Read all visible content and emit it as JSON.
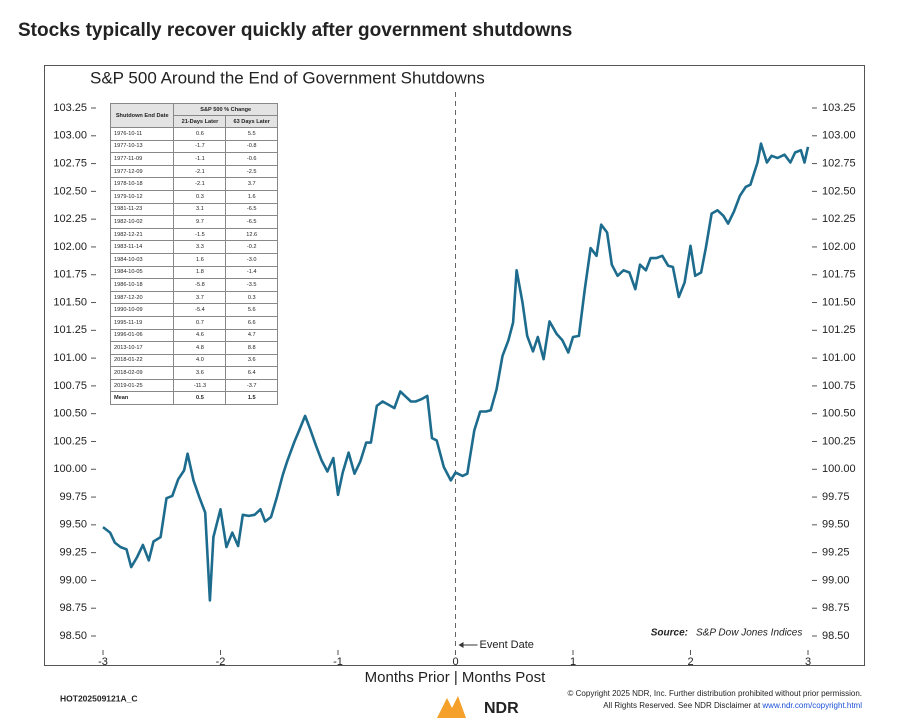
{
  "header": {
    "title": "Stocks typically recover quickly after government shutdowns"
  },
  "chart_data": {
    "type": "line",
    "title": "S&P 500 Around the End of Government Shutdowns",
    "x_label": "Months Prior | Months Post",
    "color": "#1d6c8e",
    "xlim": [
      -3,
      3
    ],
    "xticks": [
      -3,
      -2,
      -1,
      0,
      1,
      2,
      3
    ],
    "ylim": [
      98.5,
      103.25
    ],
    "yticks": [
      {
        "value": 98.5,
        "label": "98.50"
      },
      98.75,
      {
        "value": 99,
        "label": "99.00"
      },
      99.25,
      {
        "value": 99.5,
        "label": "99.50"
      },
      99.75,
      {
        "value": 100,
        "label": "100.00"
      },
      100.25,
      {
        "value": 100.5,
        "label": "100.50"
      },
      100.75,
      {
        "value": 101,
        "label": "101.00"
      },
      101.25,
      {
        "value": 101.5,
        "label": "101.50"
      },
      101.75,
      {
        "value": 102,
        "label": "102.00"
      },
      102.25,
      {
        "value": 102.5,
        "label": "102.50"
      },
      102.75,
      {
        "value": 103,
        "label": "103.00"
      },
      103.25
    ],
    "event_line": {
      "x": 0,
      "label": "Event Date"
    },
    "source": {
      "label": "Source:",
      "text": "S&P Dow Jones Indices"
    },
    "x": [
      -3.0,
      -2.94,
      -2.9,
      -2.85,
      -2.8,
      -2.76,
      -2.71,
      -2.66,
      -2.61,
      -2.57,
      -2.51,
      -2.46,
      -2.41,
      -2.36,
      -2.31,
      -2.28,
      -2.23,
      -2.18,
      -2.13,
      -2.09,
      -2.06,
      -2.0,
      -1.95,
      -1.9,
      -1.85,
      -1.81,
      -1.76,
      -1.71,
      -1.66,
      -1.62,
      -1.57,
      -1.52,
      -1.47,
      -1.43,
      -1.37,
      -1.33,
      -1.28,
      -1.24,
      -1.19,
      -1.14,
      -1.09,
      -1.04,
      -1.0,
      -0.96,
      -0.91,
      -0.86,
      -0.81,
      -0.76,
      -0.72,
      -0.67,
      -0.62,
      -0.57,
      -0.52,
      -0.47,
      -0.43,
      -0.38,
      -0.34,
      -0.29,
      -0.24,
      -0.2,
      -0.16,
      -0.1,
      -0.04,
      0.0,
      0.06,
      0.1,
      0.16,
      0.21,
      0.26,
      0.3,
      0.35,
      0.4,
      0.45,
      0.49,
      0.52,
      0.57,
      0.61,
      0.66,
      0.7,
      0.75,
      0.8,
      0.86,
      0.91,
      0.96,
      1.0,
      1.05,
      1.1,
      1.15,
      1.2,
      1.24,
      1.29,
      1.33,
      1.38,
      1.43,
      1.48,
      1.53,
      1.57,
      1.62,
      1.66,
      1.71,
      1.76,
      1.81,
      1.85,
      1.9,
      1.95,
      2.0,
      2.04,
      2.09,
      2.13,
      2.18,
      2.23,
      2.28,
      2.32,
      2.37,
      2.42,
      2.47,
      2.51,
      2.57,
      2.6,
      2.65,
      2.69,
      2.74,
      2.8,
      2.85,
      2.89,
      2.94,
      2.97,
      3.0
    ],
    "values": [
      99.48,
      99.43,
      99.34,
      99.3,
      99.28,
      99.12,
      99.21,
      99.32,
      99.18,
      99.35,
      99.39,
      99.74,
      99.76,
      99.91,
      99.99,
      100.14,
      99.9,
      99.75,
      99.61,
      98.82,
      99.39,
      99.64,
      99.3,
      99.43,
      99.31,
      99.59,
      99.58,
      99.59,
      99.64,
      99.53,
      99.57,
      99.75,
      99.95,
      100.08,
      100.25,
      100.35,
      100.48,
      100.37,
      100.22,
      100.08,
      99.98,
      100.1,
      99.77,
      99.97,
      100.15,
      99.96,
      100.07,
      100.24,
      100.24,
      100.57,
      100.61,
      100.58,
      100.55,
      100.7,
      100.66,
      100.61,
      100.61,
      100.63,
      100.66,
      100.28,
      100.26,
      100.02,
      99.9,
      99.97,
      99.94,
      99.96,
      100.35,
      100.52,
      100.52,
      100.53,
      100.72,
      101.02,
      101.16,
      101.32,
      101.79,
      101.5,
      101.2,
      101.06,
      101.19,
      100.99,
      101.33,
      101.22,
      101.16,
      101.05,
      101.19,
      101.2,
      101.62,
      101.99,
      101.92,
      102.2,
      102.13,
      101.84,
      101.74,
      101.79,
      101.77,
      101.62,
      101.84,
      101.79,
      101.9,
      101.9,
      101.92,
      101.83,
      101.82,
      101.55,
      101.68,
      102.01,
      101.74,
      101.77,
      101.99,
      102.3,
      102.33,
      102.28,
      102.21,
      102.32,
      102.46,
      102.54,
      102.56,
      102.76,
      102.93,
      102.76,
      102.82,
      102.8,
      102.83,
      102.76,
      102.85,
      102.87,
      102.76,
      102.9
    ]
  },
  "table": {
    "header": {
      "date": "Shutdown End Date",
      "group": "S&P 500 % Change",
      "col1": "21-Days Later",
      "col2": "63 Days Later"
    },
    "rows": [
      [
        "1976-10-11",
        "0.6",
        "5.5"
      ],
      [
        "1977-10-13",
        "-1.7",
        "-0.8"
      ],
      [
        "1977-11-09",
        "-1.1",
        "-0.6"
      ],
      [
        "1977-12-09",
        "-2.1",
        "-2.5"
      ],
      [
        "1978-10-18",
        "-2.1",
        "3.7"
      ],
      [
        "1979-10-12",
        "0.3",
        "1.6"
      ],
      [
        "1981-11-23",
        "3.1",
        "-6.5"
      ],
      [
        "1982-10-02",
        "9.7",
        "-6.5"
      ],
      [
        "1982-12-21",
        "-1.5",
        "12.6"
      ],
      [
        "1983-11-14",
        "3.3",
        "-0.2"
      ],
      [
        "1984-10-03",
        "1.6",
        "-3.0"
      ],
      [
        "1984-10-05",
        "1.8",
        "-1.4"
      ],
      [
        "1986-10-18",
        "-5.8",
        "-3.5"
      ],
      [
        "1987-12-20",
        "3.7",
        "0.3"
      ],
      [
        "1990-10-09",
        "-5.4",
        "5.6"
      ],
      [
        "1995-11-19",
        "0.7",
        "6.6"
      ],
      [
        "1996-01-06",
        "4.6",
        "4.7"
      ],
      [
        "2013-10-17",
        "4.8",
        "8.8"
      ],
      [
        "2018-01-22",
        "4.0",
        "3.6"
      ],
      [
        "2018-02-09",
        "3.6",
        "6.4"
      ],
      [
        "2019-01-25",
        "-11.3",
        "-3.7"
      ],
      [
        "Mean",
        "0.5",
        "1.5"
      ]
    ]
  },
  "footer": {
    "code": "HOT202509121A_C",
    "copyright": "© Copyright 2025 NDR, Inc. Further distribution prohibited without prior permission.",
    "rights": "All Rights Reserved. See NDR Disclaimer at",
    "link": "www.ndr.com/copyright.html",
    "logo": "NDR"
  }
}
